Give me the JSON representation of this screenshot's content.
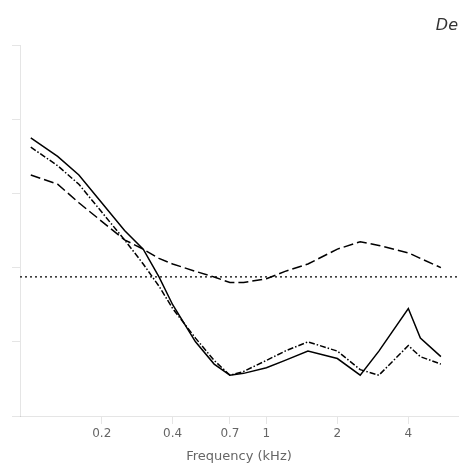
{
  "chart_data": {
    "type": "line",
    "title": "De",
    "x_label": "Frequency (kHz)",
    "x": [
      0.1,
      0.13,
      0.16,
      0.2,
      0.25,
      0.3,
      0.35,
      0.4,
      0.5,
      0.6,
      0.7,
      0.8,
      1.0,
      1.2,
      1.5,
      2.0,
      2.5,
      3.0,
      4.0,
      4.5,
      5.5
    ],
    "series": [
      {
        "color": "#000000",
        "line_style": "solid",
        "values": [
          15,
          14,
          13,
          11.5,
          10,
          9,
          7.5,
          6,
          4,
          2.8,
          2.2,
          2.3,
          2.6,
          3.0,
          3.5,
          3.1,
          2.2,
          3.5,
          5.8,
          4.2,
          3.2
        ]
      },
      {
        "color": "#000000",
        "line_style": "dashed",
        "values": [
          13,
          12.5,
          11.5,
          10.5,
          9.5,
          9.0,
          8.5,
          8.2,
          7.8,
          7.5,
          7.2,
          7.2,
          7.4,
          7.8,
          8.2,
          9.0,
          9.4,
          9.2,
          8.8,
          8.5,
          8.0
        ]
      },
      {
        "color": "#000000",
        "line_style": "dashdot",
        "values": [
          14.5,
          13.5,
          12.5,
          11,
          9.5,
          8.2,
          7.0,
          5.8,
          4.2,
          3.0,
          2.2,
          2.4,
          3.0,
          3.5,
          4.0,
          3.5,
          2.5,
          2.2,
          3.8,
          3.2,
          2.8
        ]
      }
    ],
    "reference_line": 7.5,
    "log": "x",
    "xlim": [
      0.09,
      6.5
    ],
    "ylim": [
      0.0,
      20.0
    ],
    "xticks": [
      0.2,
      0.4,
      0.7,
      1,
      2,
      4
    ],
    "yticks": [
      0,
      4,
      8,
      12,
      16,
      20
    ],
    "tick_labels": "x",
    "grid": false
  }
}
